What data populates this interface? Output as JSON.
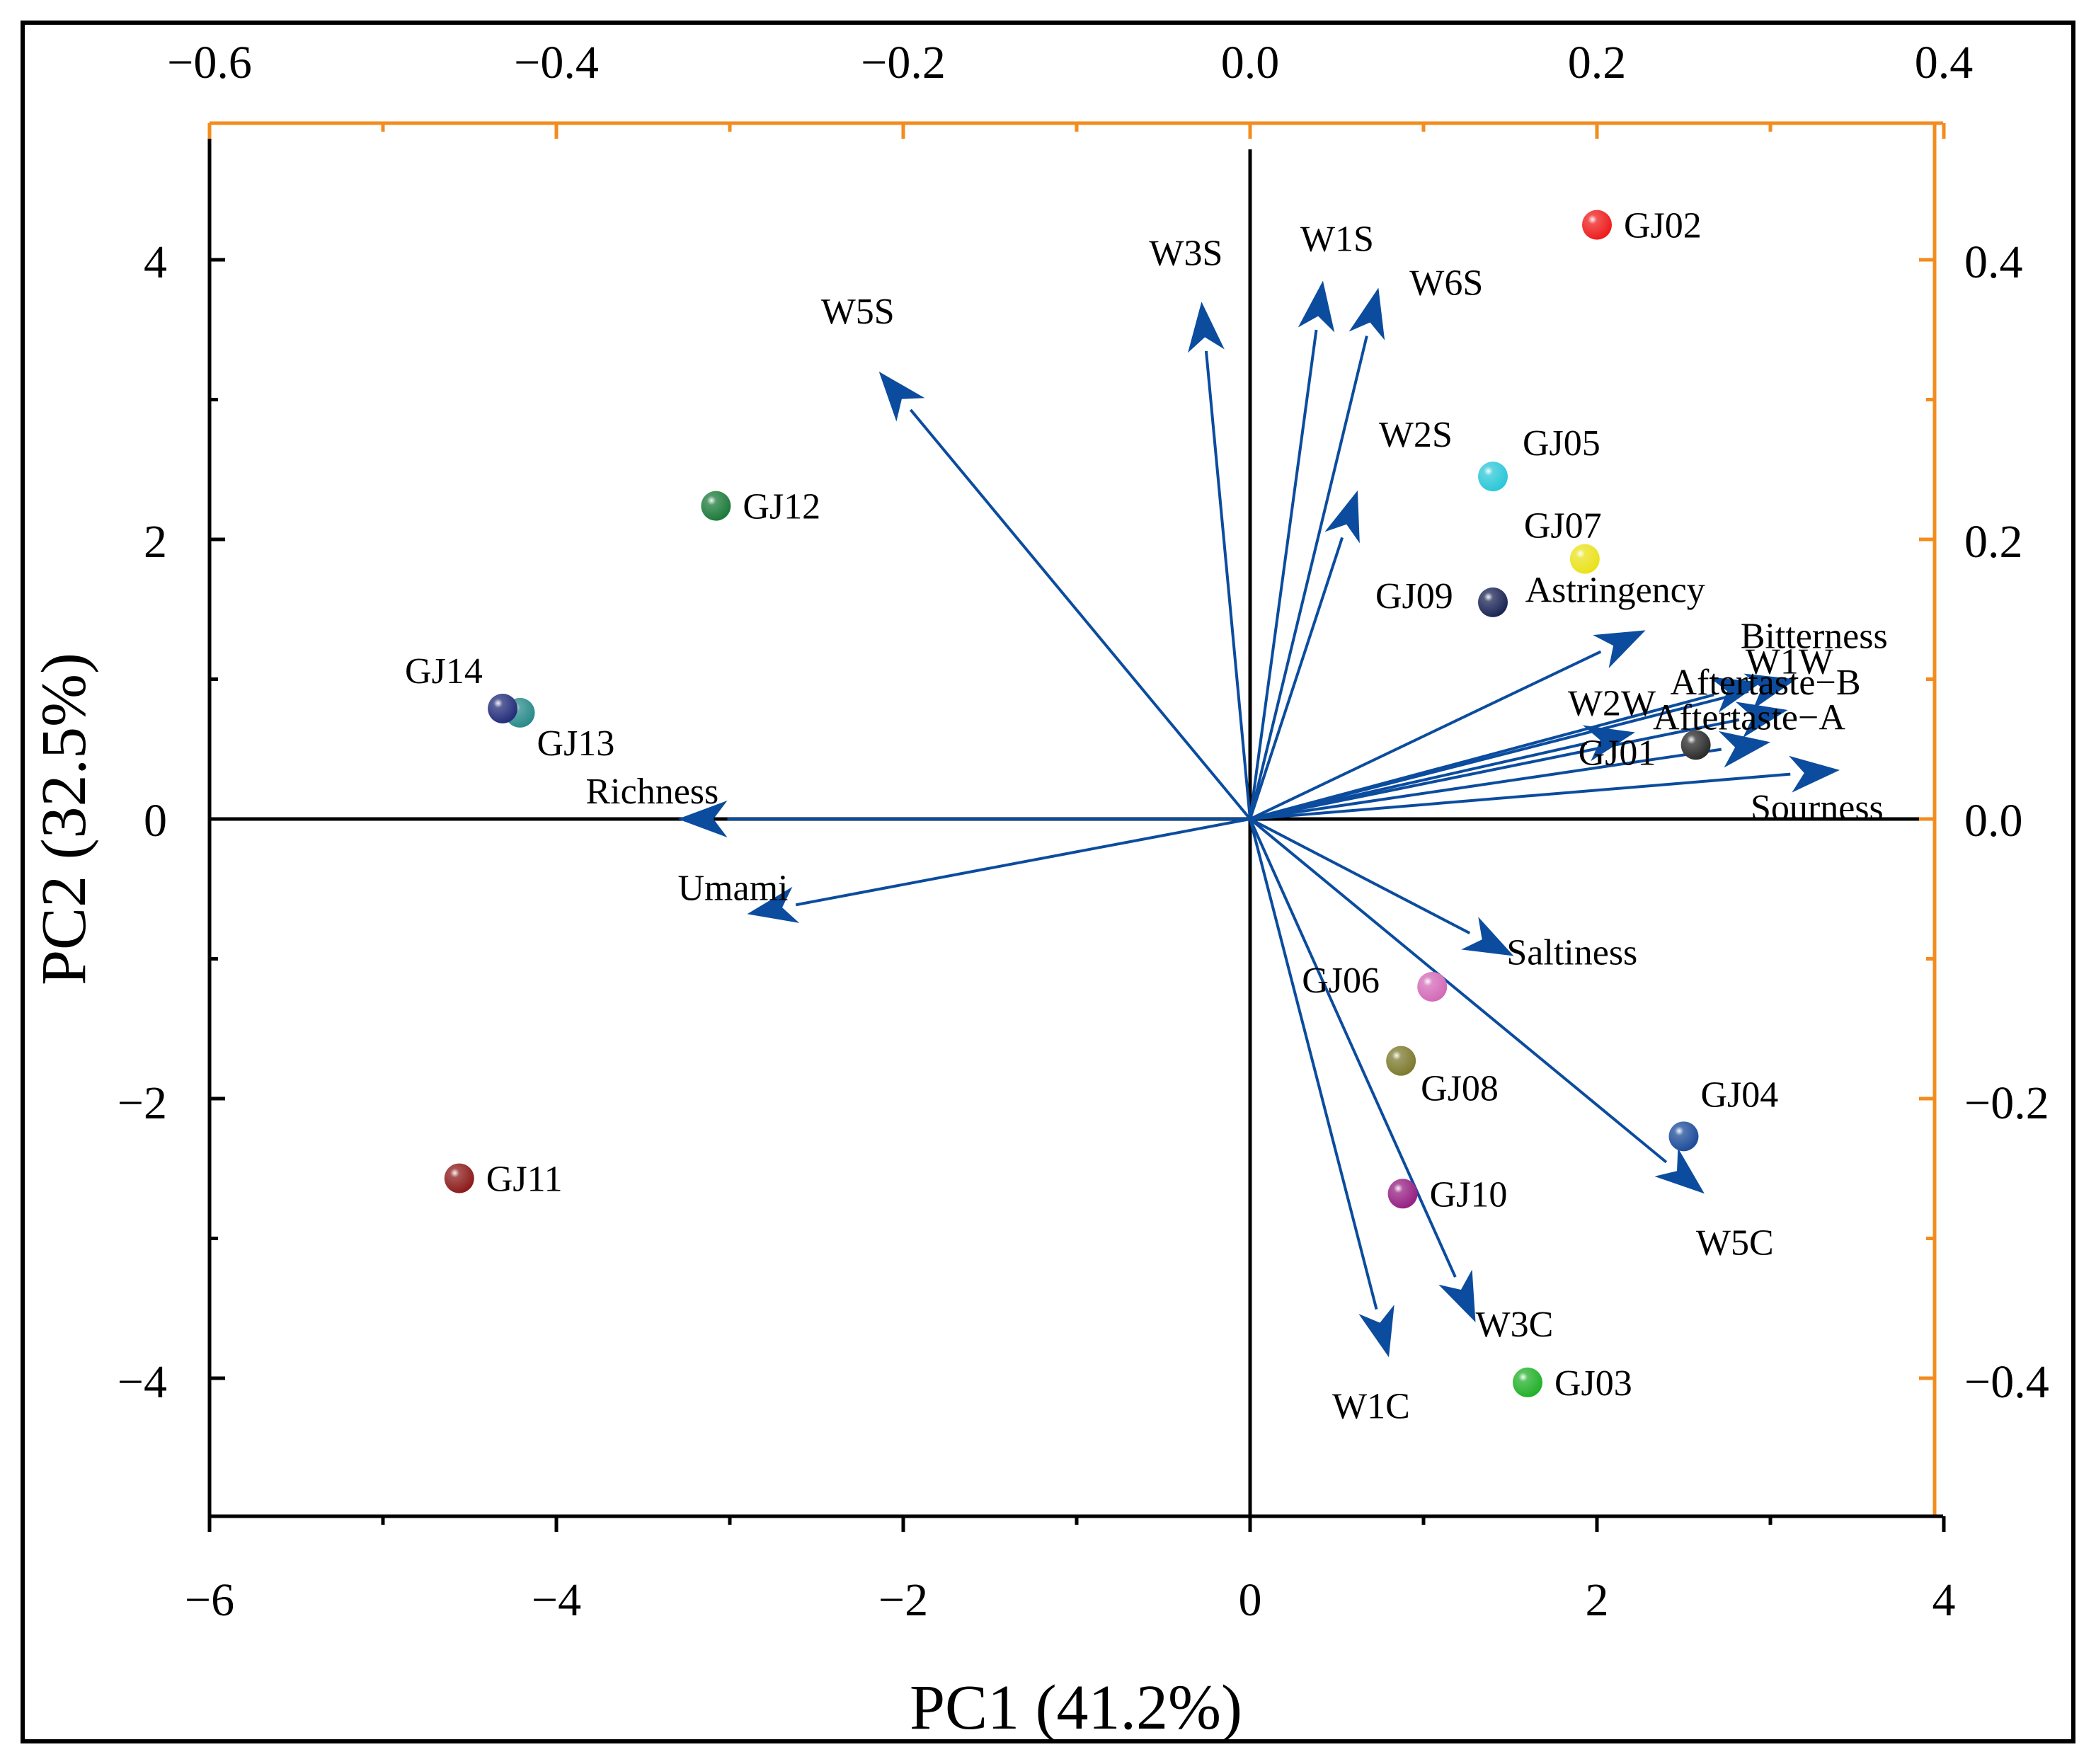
{
  "chart_data": {
    "type": "scatter",
    "subtype": "pca-biplot",
    "title": "",
    "xlabel": "PC1 (41.2%)",
    "ylabel": "PC2 (32.5%)",
    "xlim": [
      -6,
      4
    ],
    "ylim": [
      -5,
      5
    ],
    "x_ticks": [
      "−6",
      "−4",
      "−2",
      "0",
      "2",
      "4"
    ],
    "y_ticks": [
      "−4",
      "−2",
      "0",
      "2",
      "4"
    ],
    "x_tick_values": [
      -6,
      -4,
      -2,
      0,
      2,
      4
    ],
    "y_tick_values": [
      -4,
      -2,
      0,
      2,
      4
    ],
    "loading_xlim": [
      -0.6,
      0.4
    ],
    "loading_ylim": [
      -0.5,
      0.5
    ],
    "top_ticks": [
      "−0.6",
      "−0.4",
      "−0.2",
      "0.0",
      "0.2",
      "0.4"
    ],
    "top_tick_values": [
      -0.6,
      -0.4,
      -0.2,
      0.0,
      0.2,
      0.4
    ],
    "right_ticks": [
      "−0.4",
      "−0.2",
      "0.0",
      "0.2",
      "0.4"
    ],
    "right_tick_values": [
      -0.4,
      -0.2,
      0.0,
      0.2,
      0.4
    ],
    "secondary_axis_color": "#F28C1E",
    "arrow_color": "#0B4C9E",
    "samples": [
      {
        "label": "GJ01",
        "x": 2.57,
        "y": 0.53,
        "color": "#2b2b2b"
      },
      {
        "label": "GJ02",
        "x": 2.0,
        "y": 4.25,
        "color": "#ee1c1c"
      },
      {
        "label": "GJ03",
        "x": 1.6,
        "y": -4.03,
        "color": "#22b02a"
      },
      {
        "label": "GJ04",
        "x": 2.5,
        "y": -2.27,
        "color": "#1e4c9a"
      },
      {
        "label": "GJ05",
        "x": 1.4,
        "y": 2.45,
        "color": "#2bc7d8"
      },
      {
        "label": "GJ06",
        "x": 1.05,
        "y": -1.2,
        "color": "#d36ab7"
      },
      {
        "label": "GJ07",
        "x": 1.93,
        "y": 1.86,
        "color": "#eae21a"
      },
      {
        "label": "GJ08",
        "x": 0.87,
        "y": -1.73,
        "color": "#7d7a2e"
      },
      {
        "label": "GJ09",
        "x": 1.4,
        "y": 1.55,
        "color": "#1b2555"
      },
      {
        "label": "GJ10",
        "x": 0.88,
        "y": -2.68,
        "color": "#962083"
      },
      {
        "label": "GJ11",
        "x": -4.56,
        "y": -2.57,
        "color": "#8c1a1a"
      },
      {
        "label": "GJ12",
        "x": -3.08,
        "y": 2.24,
        "color": "#1c7a3a"
      },
      {
        "label": "GJ13",
        "x": -4.21,
        "y": 0.76,
        "color": "#2a8a8a"
      },
      {
        "label": "GJ14",
        "x": -4.31,
        "y": 0.79,
        "color": "#232d7a"
      }
    ],
    "loadings": [
      {
        "label": "W3S",
        "x": -0.028,
        "y": 0.37
      },
      {
        "label": "W1S",
        "x": 0.042,
        "y": 0.385
      },
      {
        "label": "W6S",
        "x": 0.074,
        "y": 0.38
      },
      {
        "label": "W5S",
        "x": -0.214,
        "y": 0.32
      },
      {
        "label": "W2S",
        "x": 0.062,
        "y": 0.235
      },
      {
        "label": "Astringency",
        "x": 0.228,
        "y": 0.135
      },
      {
        "label": "Bitterness",
        "x": 0.295,
        "y": 0.098
      },
      {
        "label": "W1W",
        "x": 0.315,
        "y": 0.1
      },
      {
        "label": "W2W",
        "x": 0.222,
        "y": 0.062
      },
      {
        "label": "Aftertaste−B",
        "x": 0.31,
        "y": 0.078
      },
      {
        "label": "Aftertaste−A",
        "x": 0.3,
        "y": 0.055
      },
      {
        "label": "Sourness",
        "x": 0.34,
        "y": 0.035
      },
      {
        "label": "Richness",
        "x": -0.33,
        "y": 0
      },
      {
        "label": "Umami",
        "x": -0.29,
        "y": -0.068
      },
      {
        "label": "Saltiness",
        "x": 0.152,
        "y": -0.098
      },
      {
        "label": "W5C",
        "x": 0.262,
        "y": -0.268
      },
      {
        "label": "W3C",
        "x": 0.13,
        "y": -0.36
      },
      {
        "label": "W1C",
        "x": 0.08,
        "y": -0.385
      }
    ]
  }
}
